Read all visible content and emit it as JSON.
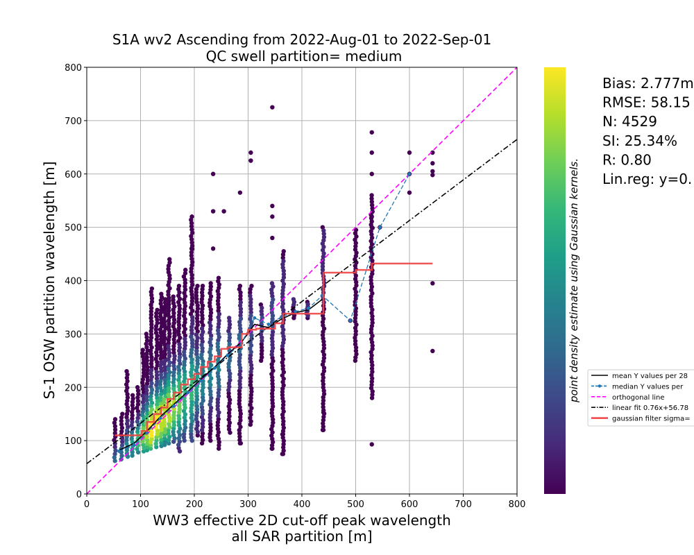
{
  "chart_data": {
    "type": "scatter",
    "title": "S1A wv2 Ascending from 2022-Aug-01 to 2022-Sep-01",
    "subtitle": "QC swell partition= medium",
    "xlabel": "WW3 effective 2D cut-off peak wavelength",
    "xlabel2": "all SAR partition [m]",
    "ylabel": "S-1 OSW partition wavelength [m]",
    "xlim": [
      0,
      800
    ],
    "ylim": [
      0,
      800
    ],
    "xticks": [
      "0",
      "100",
      "200",
      "300",
      "400",
      "500",
      "600",
      "700",
      "800"
    ],
    "yticks": [
      "0",
      "100",
      "200",
      "300",
      "400",
      "500",
      "600",
      "700",
      "800"
    ],
    "grid": true,
    "colorbar_label": "point density estimate using Gaussian kernels.",
    "colormap": [
      "#440154",
      "#482878",
      "#3e4989",
      "#31688e",
      "#26828e",
      "#1f9e89",
      "#35b779",
      "#6ece58",
      "#b5de2b",
      "#fde725"
    ],
    "stats": [
      "Bias: 2.777m",
      "RMSE: 58.15",
      "N: 4529",
      "SI: 25.34%",
      "R: 0.80",
      "Lin.reg: y=0."
    ],
    "legend": [
      {
        "label": "mean Y values per 28",
        "style": "solid",
        "color": "#000000"
      },
      {
        "label": "median Y values per",
        "style": "dash-marker",
        "color": "#1f77b4"
      },
      {
        "label": "orthogonal line",
        "style": "dashed",
        "color": "#ff00ff"
      },
      {
        "label": "linear fit 0.76x+56.78",
        "style": "dashdot",
        "color": "#000000"
      },
      {
        "label": "gaussian filter sigma=",
        "style": "solid-thick",
        "color": "#f04444"
      }
    ],
    "legend_position": "right, outside plot",
    "series": [
      {
        "name": "orthogonal line",
        "x": [
          0,
          800
        ],
        "y": [
          0,
          800
        ]
      },
      {
        "name": "linear fit 0.76x+56.78",
        "x": [
          0,
          800
        ],
        "y": [
          56.78,
          664.78
        ]
      },
      {
        "name": "mean Y values per 28",
        "x": [
          60,
          88,
          112,
          137,
          162,
          188,
          212,
          238,
          262,
          288,
          312,
          338,
          362,
          388,
          412,
          438
        ],
        "y": [
          82,
          95,
          118,
          145,
          168,
          192,
          215,
          238,
          262,
          285,
          318,
          312,
          328,
          340,
          345,
          365
        ]
      },
      {
        "name": "median Y values per",
        "x": [
          60,
          88,
          112,
          137,
          162,
          188,
          212,
          238,
          262,
          288,
          312,
          338,
          362,
          388,
          412,
          438,
          490,
          545,
          600
        ],
        "y": [
          80,
          92,
          115,
          142,
          165,
          190,
          212,
          236,
          260,
          283,
          330,
          318,
          332,
          342,
          348,
          372,
          325,
          500,
          600
        ]
      },
      {
        "name": "gaussian filter sigma=",
        "x": [
          52,
          88,
          102,
          112,
          125,
          138,
          150,
          162,
          175,
          188,
          200,
          212,
          225,
          238,
          250,
          262,
          288,
          300,
          315,
          350,
          365,
          440,
          500,
          530,
          643
        ],
        "y": [
          110,
          110,
          118,
          135,
          150,
          162,
          178,
          190,
          205,
          215,
          225,
          238,
          248,
          258,
          272,
          275,
          300,
          308,
          310,
          320,
          338,
          415,
          420,
          432,
          432
        ]
      }
    ],
    "scatter_columns": [
      {
        "x": 52,
        "min": 62,
        "max": 140,
        "peak": 0.3
      },
      {
        "x": 65,
        "min": 65,
        "max": 150,
        "peak": 0.35
      },
      {
        "x": 75,
        "min": 70,
        "max": 230,
        "peak": 0.45
      },
      {
        "x": 85,
        "min": 72,
        "max": 185,
        "peak": 0.55
      },
      {
        "x": 95,
        "min": 78,
        "max": 200,
        "peak": 0.7
      },
      {
        "x": 105,
        "min": 80,
        "max": 270,
        "peak": 0.8
      },
      {
        "x": 112,
        "min": 82,
        "max": 300,
        "peak": 0.9
      },
      {
        "x": 120,
        "min": 85,
        "max": 385,
        "peak": 1.0
      },
      {
        "x": 130,
        "min": 88,
        "max": 345,
        "peak": 1.0
      },
      {
        "x": 138,
        "min": 90,
        "max": 375,
        "peak": 0.95
      },
      {
        "x": 145,
        "min": 92,
        "max": 365,
        "peak": 0.95
      },
      {
        "x": 153,
        "min": 95,
        "max": 440,
        "peak": 0.9
      },
      {
        "x": 162,
        "min": 98,
        "max": 370,
        "peak": 0.85
      },
      {
        "x": 172,
        "min": 80,
        "max": 390,
        "peak": 0.8
      },
      {
        "x": 182,
        "min": 100,
        "max": 420,
        "peak": 0.7
      },
      {
        "x": 195,
        "min": 100,
        "max": 520,
        "peak": 0.65
      },
      {
        "x": 205,
        "min": 110,
        "max": 390,
        "peak": 0.55
      },
      {
        "x": 215,
        "min": 95,
        "max": 390,
        "peak": 0.5
      },
      {
        "x": 230,
        "min": 100,
        "max": 395,
        "peak": 0.45
      },
      {
        "x": 245,
        "min": 85,
        "max": 405,
        "peak": 0.4
      },
      {
        "x": 265,
        "min": 115,
        "max": 330,
        "peak": 0.35
      },
      {
        "x": 285,
        "min": 95,
        "max": 390,
        "peak": 0.3
      },
      {
        "x": 305,
        "min": 130,
        "max": 390,
        "peak": 0.25
      },
      {
        "x": 325,
        "min": 250,
        "max": 355,
        "peak": 0.2
      },
      {
        "x": 345,
        "min": 85,
        "max": 395,
        "peak": 0.2
      },
      {
        "x": 365,
        "min": 75,
        "max": 455,
        "peak": 0.15
      },
      {
        "x": 385,
        "min": 330,
        "max": 365,
        "peak": 0.1
      },
      {
        "x": 410,
        "min": 330,
        "max": 360,
        "peak": 0.1
      },
      {
        "x": 440,
        "min": 120,
        "max": 500,
        "peak": 0.12
      },
      {
        "x": 500,
        "min": 250,
        "max": 495,
        "peak": 0.05
      },
      {
        "x": 530,
        "min": 180,
        "max": 560,
        "peak": 0.05
      }
    ],
    "scatter_outliers": [
      {
        "x": 345,
        "y": 725
      },
      {
        "x": 530,
        "y": 678
      },
      {
        "x": 530,
        "y": 640
      },
      {
        "x": 530,
        "y": 600
      },
      {
        "x": 305,
        "y": 640
      },
      {
        "x": 305,
        "y": 625
      },
      {
        "x": 235,
        "y": 600
      },
      {
        "x": 285,
        "y": 565
      },
      {
        "x": 345,
        "y": 540
      },
      {
        "x": 345,
        "y": 520
      },
      {
        "x": 235,
        "y": 530
      },
      {
        "x": 255,
        "y": 530
      },
      {
        "x": 195,
        "y": 460
      },
      {
        "x": 235,
        "y": 460
      },
      {
        "x": 440,
        "y": 153
      },
      {
        "x": 440,
        "y": 120
      },
      {
        "x": 600,
        "y": 640
      },
      {
        "x": 600,
        "y": 600
      },
      {
        "x": 600,
        "y": 565
      },
      {
        "x": 643,
        "y": 640
      },
      {
        "x": 643,
        "y": 620
      },
      {
        "x": 643,
        "y": 605
      },
      {
        "x": 643,
        "y": 598
      },
      {
        "x": 643,
        "y": 395
      },
      {
        "x": 643,
        "y": 268
      },
      {
        "x": 530,
        "y": 93
      },
      {
        "x": 490,
        "y": 325
      },
      {
        "x": 545,
        "y": 500
      },
      {
        "x": 345,
        "y": 480
      },
      {
        "x": 365,
        "y": 112
      },
      {
        "x": 365,
        "y": 75
      },
      {
        "x": 345,
        "y": 85
      },
      {
        "x": 285,
        "y": 95
      },
      {
        "x": 305,
        "y": 625
      },
      {
        "x": 530,
        "y": 500
      },
      {
        "x": 530,
        "y": 520
      }
    ]
  }
}
